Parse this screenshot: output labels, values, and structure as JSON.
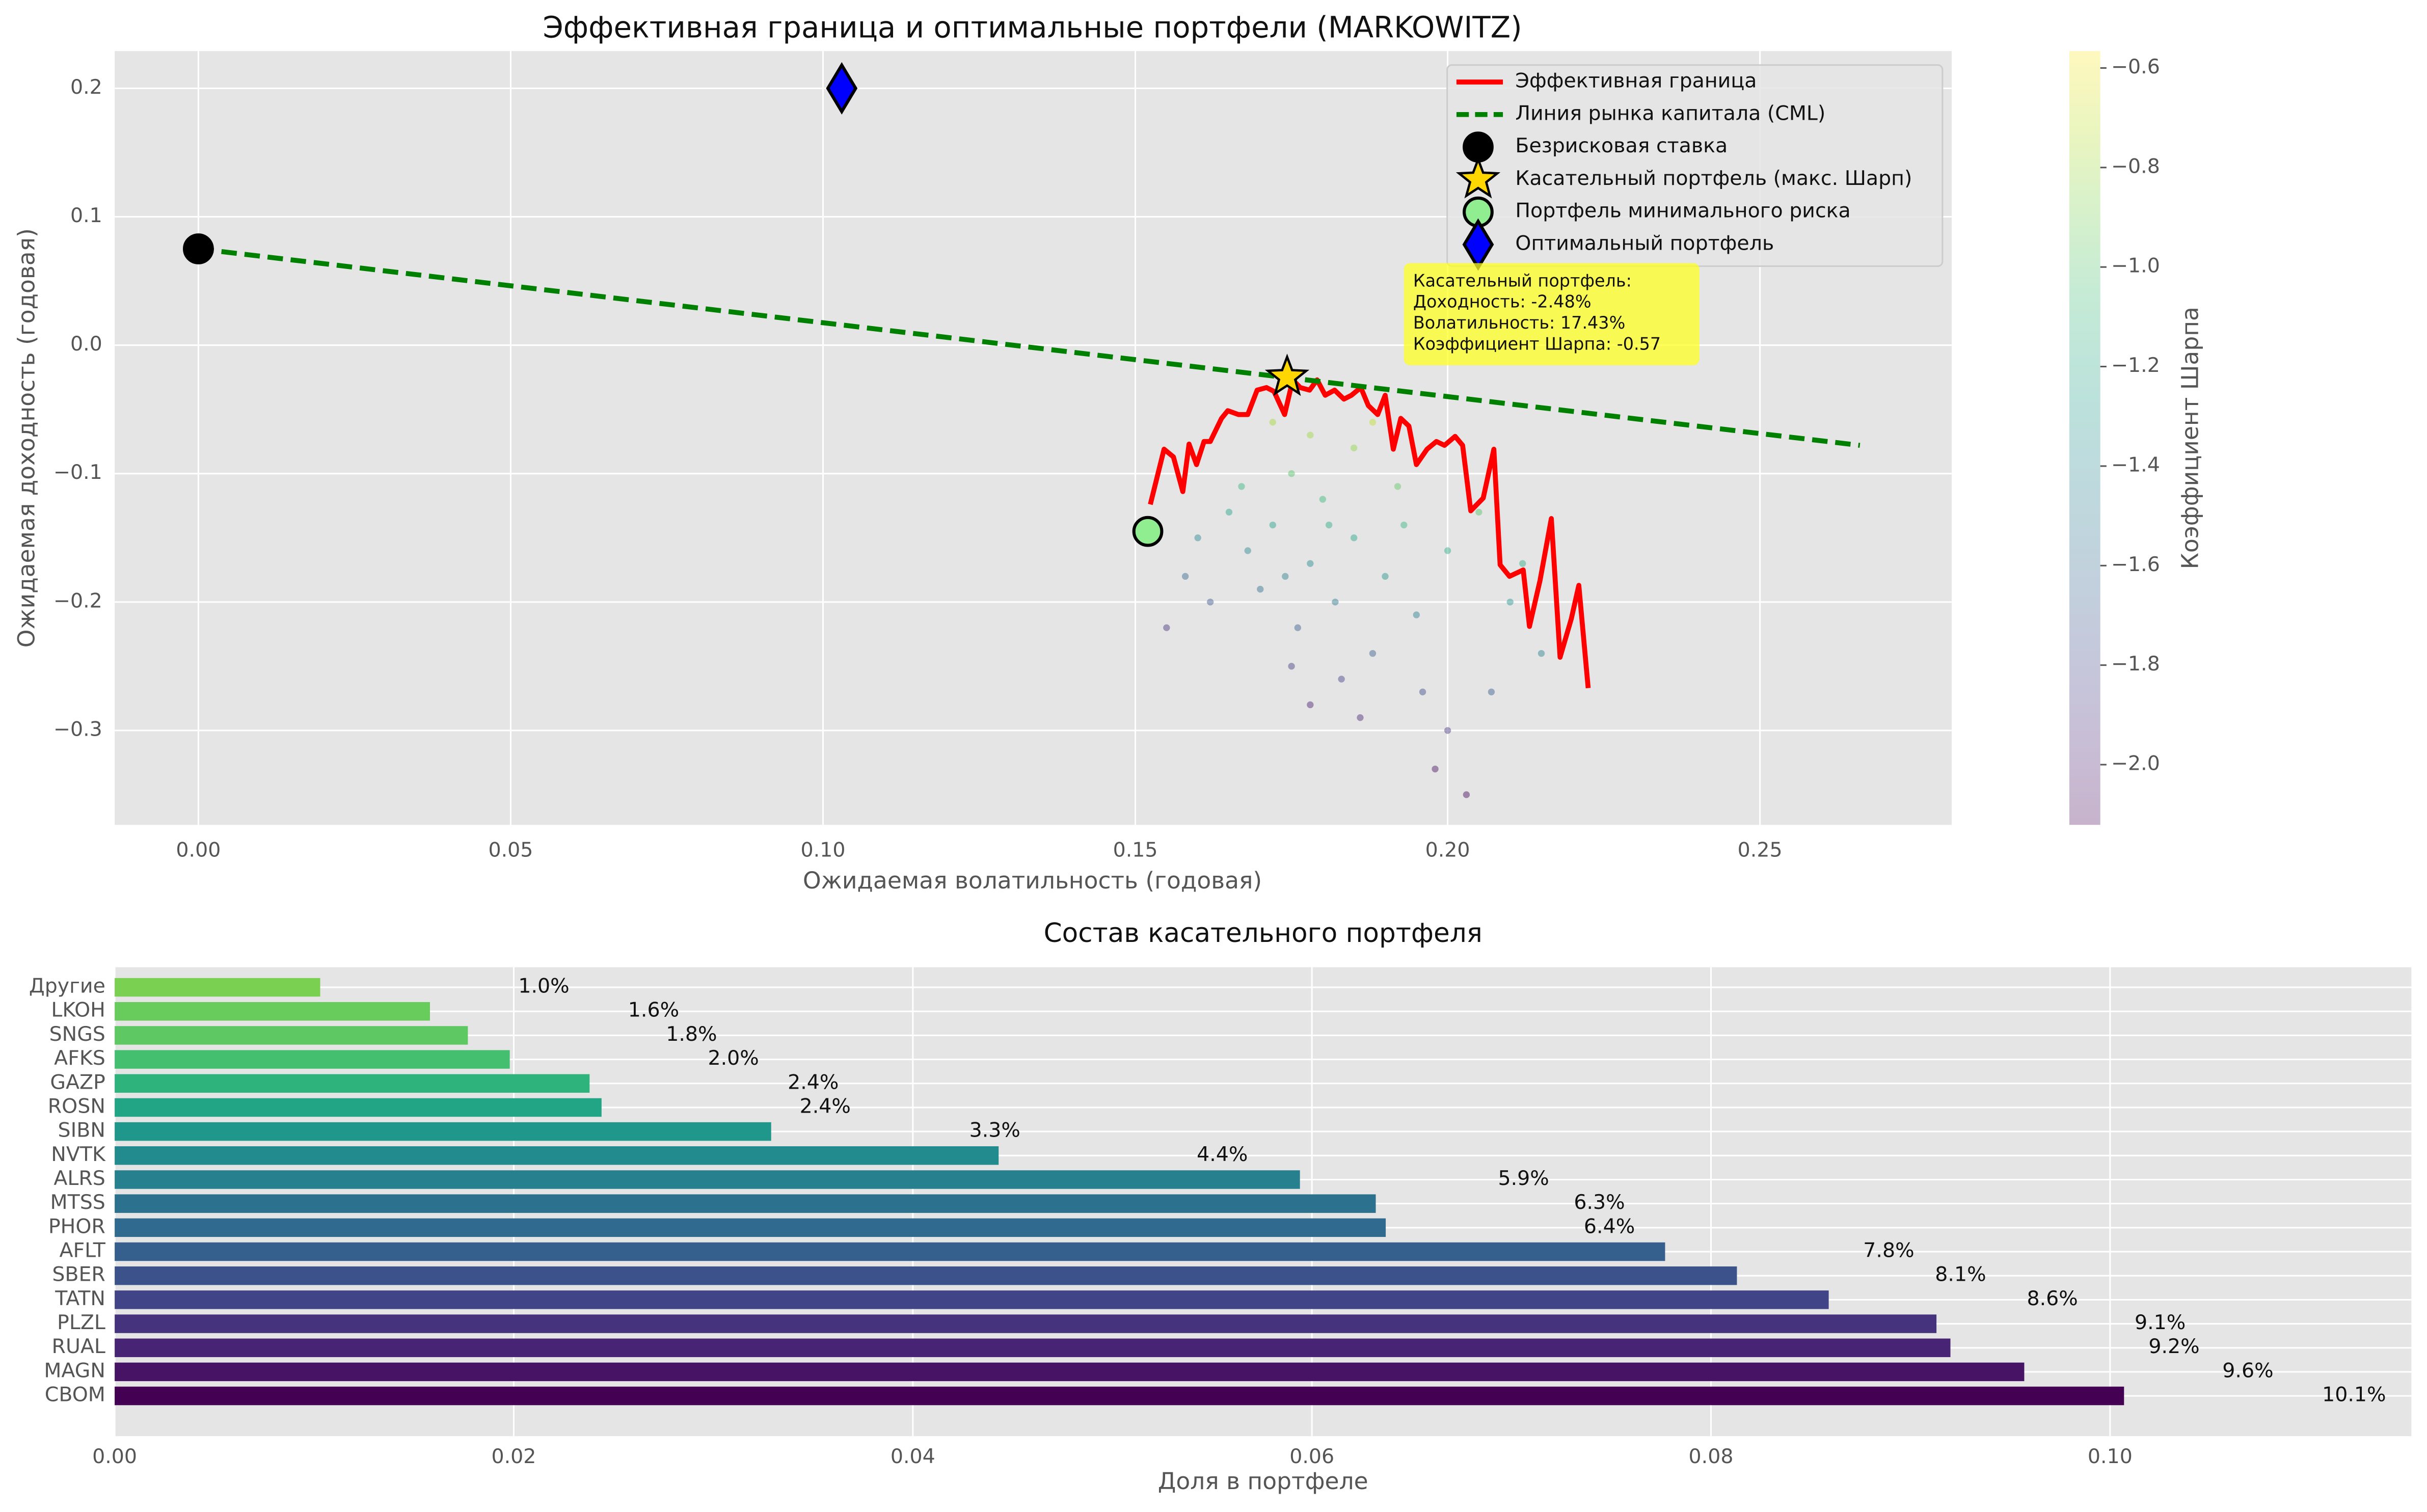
{
  "chart_data": [
    {
      "type": "scatter",
      "title": "Эффективная граница и оптимальные портфели (MARKOWITZ)",
      "x_label": "Ожидаемая волатильность (годовая)",
      "y_label": "Ожидаемая доходность (годовая)",
      "xlim": [
        -0.0134,
        0.2807
      ],
      "ylim": [
        -0.3735,
        0.229
      ],
      "xticks": [
        {
          "value": 0,
          "label": "0.00"
        },
        0.05,
        {
          "value": 0.1,
          "label": "0.10"
        },
        0.15,
        {
          "value": 0.2,
          "label": "0.20"
        },
        0.25
      ],
      "yticks": [
        {
          "value": -0.3,
          "label": "−0.3"
        },
        {
          "value": -0.2,
          "label": "−0.2"
        },
        {
          "value": -0.1,
          "label": "−0.1"
        },
        {
          "value": 0,
          "label": "0.0"
        },
        0.1,
        0.2
      ],
      "grid": true,
      "legend": "upper right",
      "cloud": {
        "x": [
          0.175,
          0.18,
          0.172,
          0.185,
          0.178,
          0.168,
          0.19,
          0.182,
          0.176,
          0.188,
          0.195,
          0.17,
          0.165,
          0.16,
          0.2,
          0.205,
          0.185,
          0.178,
          0.192,
          0.183,
          0.196,
          0.175,
          0.186,
          0.2,
          0.198,
          0.162,
          0.158,
          0.21,
          0.215,
          0.172,
          0.188,
          0.167,
          0.181,
          0.193,
          0.174,
          0.207,
          0.203,
          0.155,
          0.178,
          0.212
        ],
        "y": [
          -0.1,
          -0.12,
          -0.14,
          -0.15,
          -0.17,
          -0.16,
          -0.18,
          -0.2,
          -0.22,
          -0.24,
          -0.21,
          -0.19,
          -0.13,
          -0.15,
          -0.16,
          -0.13,
          -0.08,
          -0.07,
          -0.11,
          -0.26,
          -0.27,
          -0.25,
          -0.29,
          -0.3,
          -0.33,
          -0.2,
          -0.18,
          -0.2,
          -0.24,
          -0.06,
          -0.06,
          -0.11,
          -0.14,
          -0.14,
          -0.18,
          -0.27,
          -0.35,
          -0.22,
          -0.28,
          -0.17
        ],
        "c": [
          -1.0,
          -1.08,
          -1.25,
          -1.22,
          -1.38,
          -1.4,
          -1.34,
          -1.51,
          -1.68,
          -1.68,
          -1.46,
          -1.56,
          -1.24,
          -1.41,
          -1.18,
          -1.0,
          -0.84,
          -0.81,
          -0.96,
          -1.83,
          -1.76,
          -1.86,
          -1.96,
          -1.88,
          -2.05,
          -1.7,
          -1.61,
          -1.31,
          -1.47,
          -0.78,
          -0.72,
          -1.11,
          -1.19,
          -1.11,
          -1.47,
          -1.67,
          -2.09,
          -1.9,
          -1.99,
          -1.16
        ]
      },
      "series": [
        {
          "name": "Эффективная граница",
          "kind": "line",
          "color": "#ff0000",
          "x": [
            0.1524,
            0.1546,
            0.1561,
            0.1576,
            0.1586,
            0.1598,
            0.161,
            0.162,
            0.1638,
            0.1648,
            0.1665,
            0.168,
            0.1695,
            0.171,
            0.1722,
            0.1739,
            0.1752,
            0.1764,
            0.1779,
            0.1791,
            0.1804,
            0.1819,
            0.1834,
            0.1846,
            0.1861,
            0.1873,
            0.1888,
            0.19,
            0.1913,
            0.1925,
            0.1938,
            0.195,
            0.1967,
            0.1982,
            0.1995,
            0.2012,
            0.2024,
            0.2037,
            0.2057,
            0.2074,
            0.2084,
            0.2099,
            0.2121,
            0.2131,
            0.2148,
            0.2166,
            0.218,
            0.2198,
            0.221,
            0.2225
          ],
          "y": [
            -0.124,
            -0.081,
            -0.087,
            -0.114,
            -0.077,
            -0.093,
            -0.075,
            -0.075,
            -0.057,
            -0.051,
            -0.054,
            -0.054,
            -0.035,
            -0.033,
            -0.036,
            -0.054,
            -0.027,
            -0.033,
            -0.035,
            -0.027,
            -0.039,
            -0.035,
            -0.042,
            -0.039,
            -0.033,
            -0.047,
            -0.054,
            -0.039,
            -0.081,
            -0.057,
            -0.063,
            -0.093,
            -0.081,
            -0.075,
            -0.078,
            -0.071,
            -0.078,
            -0.129,
            -0.119,
            -0.081,
            -0.171,
            -0.18,
            -0.175,
            -0.219,
            -0.183,
            -0.135,
            -0.243,
            -0.213,
            -0.187,
            -0.267
          ]
        },
        {
          "name": "Линия рынка капитала (CML)",
          "kind": "dashed",
          "color": "#008000",
          "x": [
            0,
            0.266
          ],
          "y": [
            0.075,
            -0.078
          ]
        },
        {
          "name": "Безрисковая ставка",
          "kind": "circle",
          "color": "#000000",
          "x": [
            0
          ],
          "y": [
            0.075
          ]
        },
        {
          "name": "Касательный портфель (макс. Шарп)",
          "kind": "star",
          "color": "#ffd700",
          "x": [
            0.1743
          ],
          "y": [
            -0.0248
          ]
        },
        {
          "name": "Портфель минимального риска",
          "kind": "circle",
          "color": "#90ee90",
          "x": [
            0.152
          ],
          "y": [
            -0.145
          ]
        },
        {
          "name": "Оптимальный портфель",
          "kind": "diamond",
          "color": "#0000ff",
          "x": [
            0.103
          ],
          "y": [
            0.2
          ]
        }
      ],
      "annotation": [
        "Касательный портфель:",
        "Доходность: -2.48%",
        "Волатильность: 17.43%",
        "Коэффициент Шарпа: -0.57"
      ],
      "colorbar": {
        "label": "Коэффициент Шарпа",
        "colormap": "viridis",
        "lim": [
          -2.121,
          -0.566
        ],
        "ticks": [
          {
            "value": -2.0,
            "label": "−2.0"
          },
          {
            "value": -1.8,
            "label": "−1.8"
          },
          {
            "value": -1.6,
            "label": "−1.6"
          },
          {
            "value": -1.4,
            "label": "−1.4"
          },
          {
            "value": -1.2,
            "label": "−1.2"
          },
          {
            "value": -1.0,
            "label": "−1.0"
          },
          {
            "value": -0.8,
            "label": "−0.8"
          },
          {
            "value": -0.6,
            "label": "−0.6"
          }
        ]
      }
    },
    {
      "type": "hbar",
      "title": "Состав касательного портфеля",
      "x_label": "Доля в портфеле",
      "categories": [
        "Другие",
        "LKOH",
        "SNGS",
        "AFKS",
        "GAZP",
        "ROSN",
        "SIBN",
        "NVTK",
        "ALRS",
        "MTSS",
        "PHOR",
        "AFLT",
        "SBER",
        "TATN",
        "PLZL",
        "RUAL",
        "MAGN",
        "CBOM"
      ],
      "values": [
        0.0103,
        0.0158,
        0.0177,
        0.0198,
        0.0238,
        0.0244,
        0.0329,
        0.0443,
        0.0594,
        0.0632,
        0.0637,
        0.0777,
        0.0813,
        0.0859,
        0.0913,
        0.092,
        0.0957,
        0.1007
      ],
      "value_labels": [
        "1.0%",
        "1.6%",
        "1.8%",
        "2.0%",
        "2.4%",
        "2.4%",
        "3.3%",
        "4.4%",
        "5.9%",
        "6.3%",
        "6.4%",
        "7.8%",
        "8.1%",
        "8.6%",
        "9.1%",
        "9.2%",
        "9.6%",
        "10.1%"
      ],
      "colors": [
        "#7ad151",
        "#67cc5c",
        "#5ec962",
        "#44bf70",
        "#2eb37c",
        "#21a585",
        "#1f978b",
        "#228b8d",
        "#27808e",
        "#2c728e",
        "#306a8e",
        "#355f8d",
        "#3b528b",
        "#414487",
        "#46337e",
        "#482475",
        "#471365",
        "#440154"
      ],
      "xlim": [
        0,
        0.1151
      ],
      "xticks": [
        {
          "value": 0,
          "label": "0.00"
        },
        0.02,
        0.04,
        0.06,
        0.08,
        {
          "value": 0.1,
          "label": "0.10"
        }
      ],
      "grid": true
    }
  ]
}
